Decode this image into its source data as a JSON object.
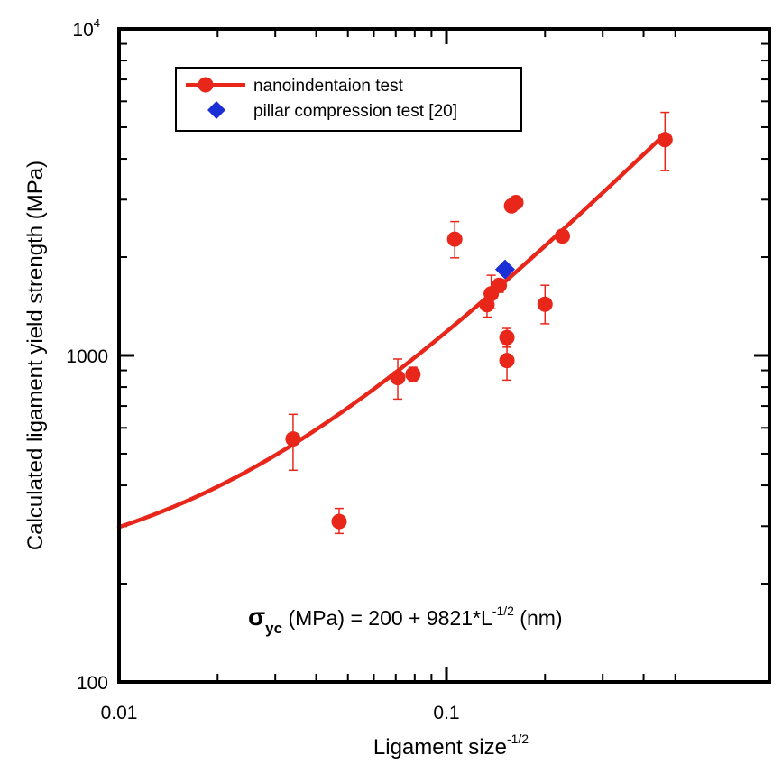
{
  "chart_data": {
    "type": "scatter",
    "xlabel": {
      "text": "Ligament size",
      "superscript": "-1/2"
    },
    "ylabel": "Calculated ligament yield strength (MPa)",
    "x_scale": "log",
    "y_scale": "log",
    "xlim": [
      0.01,
      0.5
    ],
    "ylim": [
      100,
      10000
    ],
    "grid": false,
    "legend_position": "top-left",
    "x_ticks": [
      {
        "value": 0.01,
        "label": "0.01"
      },
      {
        "value": 0.1,
        "label": "0.1"
      }
    ],
    "y_ticks": [
      {
        "value": 100,
        "label": "100"
      },
      {
        "value": 1000,
        "label": "1000"
      },
      {
        "value": 10000,
        "base": "10",
        "exp": "4"
      }
    ],
    "series": [
      {
        "name": "nanoindentaion test",
        "color": "#e8261a",
        "marker": "circle",
        "points": [
          {
            "x": 0.034,
            "y": 555,
            "err_low": 445,
            "err_high": 660
          },
          {
            "x": 0.047,
            "y": 310,
            "err_low": 285,
            "err_high": 340
          },
          {
            "x": 0.071,
            "y": 855,
            "err_low": 735,
            "err_high": 975
          },
          {
            "x": 0.079,
            "y": 875,
            "err_low": 830,
            "err_high": 920
          },
          {
            "x": 0.106,
            "y": 2270,
            "err_low": 1990,
            "err_high": 2570
          },
          {
            "x": 0.133,
            "y": 1430,
            "err_low": 1310,
            "err_high": 1545
          },
          {
            "x": 0.137,
            "y": 1545,
            "err_low": 1390,
            "err_high": 1760
          },
          {
            "x": 0.145,
            "y": 1640,
            "err_low": 1560,
            "err_high": 1710
          },
          {
            "x": 0.153,
            "y": 1135,
            "err_low": 1060,
            "err_high": 1210
          },
          {
            "x": 0.153,
            "y": 965,
            "err_low": 840,
            "err_high": 1085
          },
          {
            "x": 0.158,
            "y": 2870,
            "err_low": 2800,
            "err_high": 2940
          },
          {
            "x": 0.163,
            "y": 2940,
            "err_low": 2860,
            "err_high": 3020
          },
          {
            "x": 0.2,
            "y": 1435,
            "err_low": 1250,
            "err_high": 1640
          },
          {
            "x": 0.226,
            "y": 2320,
            "err_low": 2260,
            "err_high": 2380
          },
          {
            "x": 0.465,
            "y": 4580,
            "err_low": 3680,
            "err_high": 5550
          }
        ]
      },
      {
        "name": "pillar compression test [20]",
        "color": "#1a2fd6",
        "marker": "diamond",
        "points": [
          {
            "x": 0.151,
            "y": 1835
          }
        ]
      }
    ],
    "fit": {
      "intercept": 200,
      "slope": 9821,
      "color": "#e8261a",
      "x_range": [
        0.01,
        0.465
      ]
    },
    "annotation": {
      "sigma": "σ",
      "sub": "yc",
      "mid": " (MPa) = 200 + 9821*L",
      "sup": "-1/2",
      "end": " (nm)"
    }
  }
}
